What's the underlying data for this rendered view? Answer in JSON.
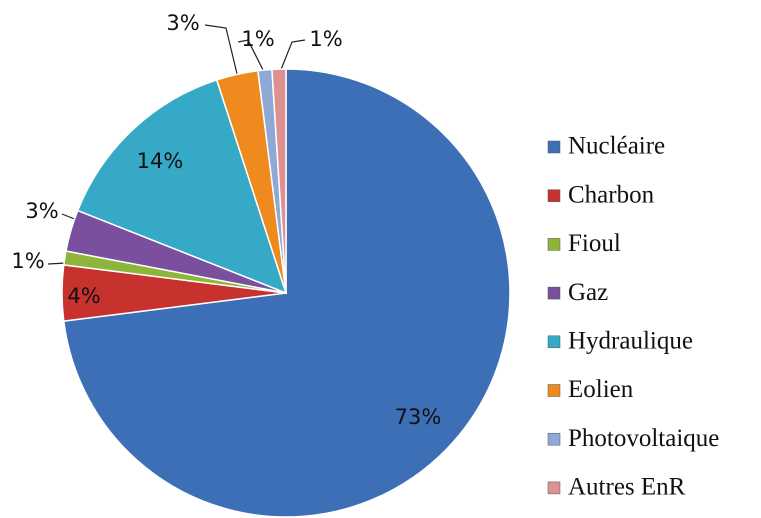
{
  "chart_data": {
    "type": "pie",
    "categories": [
      "Nucléaire",
      "Charbon",
      "Fioul",
      "Gaz",
      "Hydraulique",
      "Eolien",
      "Photovoltaique",
      "Autres EnR"
    ],
    "values": [
      73,
      4,
      1,
      3,
      14,
      3,
      1,
      1
    ],
    "value_labels": [
      "73%",
      "4%",
      "1%",
      "3%",
      "14%",
      "3%",
      "1%",
      "1%"
    ],
    "colors": [
      "#3d6fb6",
      "#c8322e",
      "#8db53c",
      "#7a4f9e",
      "#35a9c6",
      "#ef8a1e",
      "#8ea9d5",
      "#df9090"
    ],
    "legend": "right"
  }
}
